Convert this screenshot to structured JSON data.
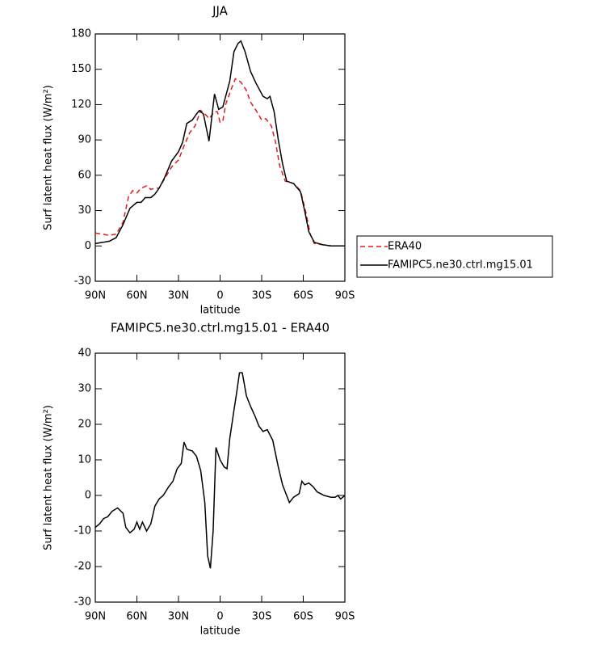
{
  "chart_data": [
    {
      "type": "line",
      "title": "JJA",
      "xlabel": "latitude",
      "ylabel": "Surf latent heat flux (W/m²)",
      "xlim": [
        90,
        -90
      ],
      "xticks": [
        {
          "value": 90,
          "label": "90N"
        },
        {
          "value": 60,
          "label": "60N"
        },
        {
          "value": 30,
          "label": "30N"
        },
        0,
        {
          "value": -30,
          "label": "30S"
        },
        {
          "value": -60,
          "label": "60S"
        },
        {
          "value": -90,
          "label": "90S"
        }
      ],
      "ylim": [
        -30,
        180
      ],
      "yticks": [
        -30,
        0,
        30,
        60,
        90,
        120,
        150,
        180
      ],
      "legend": "right",
      "series": [
        {
          "name": "ERA40",
          "color": "#e41a1c",
          "line_style": "dashed",
          "x": [
            90,
            85,
            80,
            75,
            70,
            66,
            63,
            60,
            57,
            53,
            50,
            47,
            44,
            40,
            35,
            30,
            26,
            22,
            18,
            14,
            10,
            8,
            4,
            2,
            0,
            -2,
            -4,
            -8,
            -11,
            -15,
            -19,
            -22,
            -26,
            -30,
            -33,
            -37,
            -40,
            -43,
            -47,
            -53,
            -58,
            -62,
            -65,
            -68,
            -74,
            -80,
            -90
          ],
          "values": [
            11,
            10,
            9,
            10,
            20,
            42,
            47,
            45,
            49,
            51,
            48,
            49,
            49,
            57,
            67,
            73,
            85,
            96,
            102,
            115,
            111,
            108,
            114,
            114,
            105,
            106,
            120,
            133,
            142,
            139,
            132,
            122,
            115,
            107,
            108,
            102,
            88,
            68,
            55,
            53,
            47,
            28,
            10,
            2,
            1,
            0,
            0
          ]
        },
        {
          "name": "FAMIPC5.ne30.ctrl.mg15.01",
          "color": "#000000",
          "line_style": "solid",
          "x": [
            90,
            85,
            80,
            75,
            70,
            65,
            60,
            57,
            54,
            50,
            47,
            44,
            40,
            35,
            30,
            27,
            24,
            20,
            17,
            15,
            12,
            8,
            4,
            1,
            -2,
            -7,
            -10,
            -13,
            -15,
            -18,
            -22,
            -26,
            -31,
            -34,
            -36,
            -39,
            -42,
            -45,
            -48,
            -53,
            -58,
            -61,
            -64,
            -68,
            -74,
            -80,
            -90
          ],
          "values": [
            2,
            3,
            4,
            7,
            18,
            32,
            37,
            37,
            41,
            41,
            44,
            49,
            58,
            72,
            80,
            88,
            104,
            107,
            112,
            115,
            112,
            89,
            129,
            116,
            118,
            140,
            165,
            172,
            174,
            165,
            148,
            138,
            127,
            125,
            127,
            114,
            90,
            70,
            55,
            53,
            46,
            30,
            12,
            3,
            1,
            0,
            0
          ]
        }
      ]
    },
    {
      "type": "line",
      "title": "FAMIPC5.ne30.ctrl.mg15.01 - ERA40",
      "xlabel": "latitude",
      "ylabel": "Surf latent heat flux (W/m²)",
      "xlim": [
        90,
        -90
      ],
      "xticks": [
        {
          "value": 90,
          "label": "90N"
        },
        {
          "value": 60,
          "label": "60N"
        },
        {
          "value": 30,
          "label": "30N"
        },
        0,
        {
          "value": -30,
          "label": "30S"
        },
        {
          "value": -60,
          "label": "60S"
        },
        {
          "value": -90,
          "label": "90S"
        }
      ],
      "ylim": [
        -30,
        40
      ],
      "yticks": [
        -30,
        -20,
        -10,
        0,
        10,
        20,
        30,
        40
      ],
      "series": [
        {
          "color": "#000000",
          "line_style": "solid",
          "x": [
            90,
            87,
            84,
            81,
            78,
            74,
            70,
            68,
            65,
            62,
            60,
            58,
            56,
            53,
            50,
            47,
            44,
            41,
            37,
            34,
            31,
            28,
            26,
            24,
            20,
            17,
            14,
            11,
            9,
            7,
            5,
            3,
            0,
            -3,
            -5,
            -7,
            -10,
            -12,
            -14,
            -16,
            -19,
            -22,
            -25,
            -28,
            -31,
            -34,
            -38,
            -42,
            -45,
            -48,
            -50,
            -53,
            -57,
            -59,
            -61,
            -64,
            -67,
            -70,
            -75,
            -80,
            -83,
            -85,
            -87,
            -90
          ],
          "values": [
            -9,
            -8,
            -6.5,
            -6,
            -4.5,
            -3.5,
            -5,
            -9,
            -10.5,
            -9.5,
            -7.5,
            -9.5,
            -7.5,
            -10,
            -8,
            -3,
            -1,
            0,
            2.5,
            4,
            7.5,
            9,
            15,
            13,
            12.5,
            11,
            7,
            -2,
            -17,
            -20.5,
            -10,
            13.5,
            10,
            8,
            7.5,
            16,
            24,
            29,
            34.5,
            34.5,
            28,
            25,
            22.5,
            19.5,
            18,
            18.5,
            15.5,
            8,
            3,
            0,
            -2,
            -0.5,
            0.5,
            4,
            3,
            3.5,
            2.5,
            1,
            0,
            -0.5,
            -0.5,
            0,
            -1,
            0
          ]
        }
      ]
    }
  ]
}
